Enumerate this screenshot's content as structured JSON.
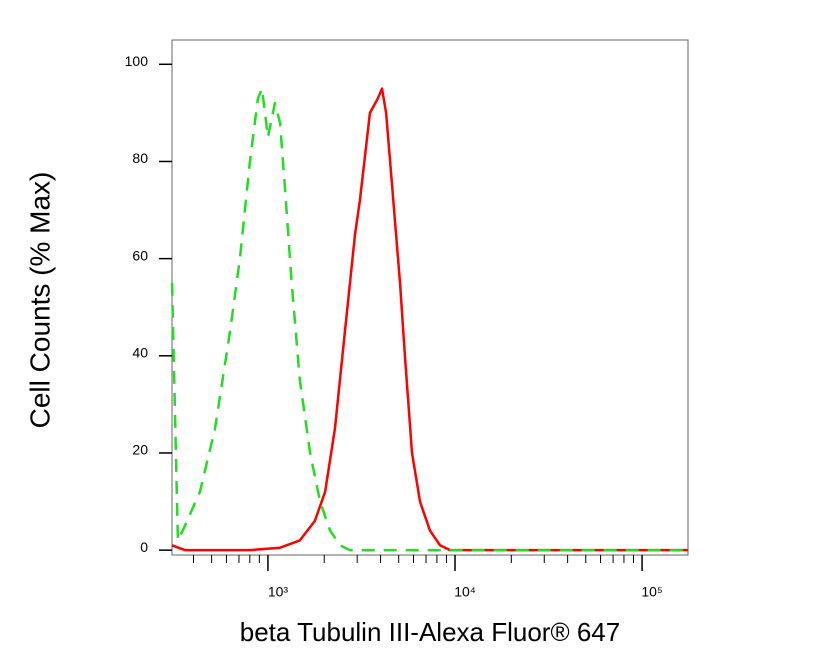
{
  "chart_data": {
    "type": "line",
    "x_label": "beta Tubulin III-Alexa Fluor® 647",
    "y_label": "Cell Counts (% Max)",
    "xscale": "log",
    "xlim": [
      307,
      176000
    ],
    "ylim": [
      -1,
      105
    ],
    "xticks": [
      {
        "value": 1000,
        "label": "10³"
      },
      {
        "value": 10000,
        "label": "10⁴"
      },
      {
        "value": 100000,
        "label": "10⁵"
      }
    ],
    "xminorticks": [
      400,
      500,
      600,
      700,
      800,
      900,
      2000,
      3000,
      4000,
      5000,
      6000,
      7000,
      8000,
      9000,
      20000,
      30000,
      40000,
      50000,
      60000,
      70000,
      80000,
      90000
    ],
    "yticks": [
      0,
      20,
      40,
      60,
      80,
      100
    ],
    "series": [
      {
        "color": "#ff0000",
        "dashed": false,
        "x": [
          307,
          360,
          801,
          1160,
          1480,
          1780,
          2020,
          2280,
          2580,
          2920,
          3100,
          3510,
          3870,
          4070,
          4280,
          4610,
          5080,
          5400,
          5890,
          6500,
          7350,
          8320,
          9400,
          176000
        ],
        "values": [
          1,
          0,
          0,
          0.5,
          2,
          6,
          12,
          25,
          45,
          65,
          72,
          90,
          93,
          95,
          90,
          75,
          55,
          40,
          20,
          10,
          4,
          1,
          0,
          0
        ]
      },
      {
        "color": "#22dd22",
        "dashed": true,
        "x": [
          307,
          330,
          360,
          433,
          521,
          627,
          708,
          801,
          884,
          929,
          1000,
          1090,
          1160,
          1230,
          1340,
          1480,
          1680,
          1900,
          2150,
          2430,
          2740,
          176000
        ],
        "values": [
          55,
          2,
          5,
          12,
          25,
          45,
          60,
          80,
          93,
          95,
          85,
          92,
          88,
          75,
          55,
          35,
          20,
          10,
          4,
          1,
          0,
          0
        ]
      }
    ]
  }
}
